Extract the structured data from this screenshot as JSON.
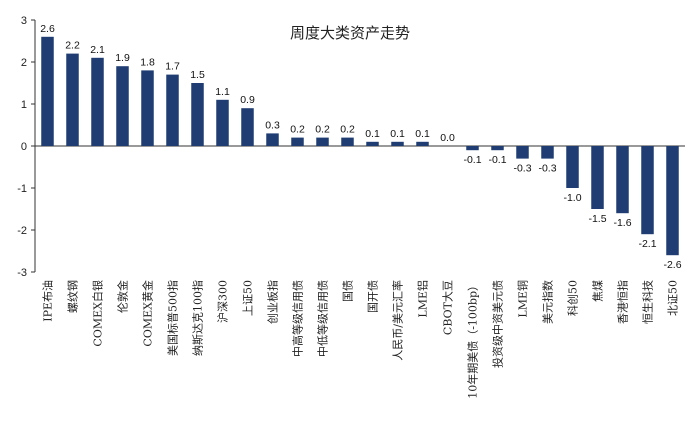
{
  "chart_data": {
    "type": "bar",
    "title": "周度大类资产走势",
    "xlabel": "",
    "ylabel": "",
    "ylim": [
      -3,
      3
    ],
    "yticks": [
      3,
      2,
      1,
      0,
      -1,
      -2,
      -3
    ],
    "bar_color": "#1f3d73",
    "grid": false,
    "legend": "none",
    "categories": [
      "IPE布油",
      "螺纹钢",
      "COMEX白银",
      "伦敦金",
      "COMEX黄金",
      "美国标普500指",
      "纳斯达克100指",
      "沪深300",
      "上证50",
      "创业板指",
      "中高等级信用债",
      "中低等级信用债",
      "国债",
      "国开债",
      "人民币/美元汇率",
      "LME铝",
      "CBOT大豆",
      "10年期美债（-100bp）",
      "投资级中资美元债",
      "LME铜",
      "美元指数",
      "科创50",
      "焦煤",
      "香港恒指",
      "恒生科技",
      "北证50"
    ],
    "values": [
      2.6,
      2.2,
      2.1,
      1.9,
      1.8,
      1.7,
      1.5,
      1.1,
      0.9,
      0.3,
      0.2,
      0.2,
      0.2,
      0.1,
      0.1,
      0.1,
      0.0,
      -0.1,
      -0.1,
      -0.3,
      -0.3,
      -1.0,
      -1.5,
      -1.6,
      -2.1,
      -2.6
    ],
    "value_labels": [
      "2.6",
      "2.2",
      "2.1",
      "1.9",
      "1.8",
      "1.7",
      "1.5",
      "1.1",
      "0.9",
      "0.3",
      "0.2",
      "0.2",
      "0.2",
      "0.1",
      "0.1",
      "0.1",
      "0.0",
      "-0.1",
      "-0.1",
      "-0.3",
      "-0.3",
      "-1.0",
      "-1.5",
      "-1.6",
      "-2.1",
      "-2.6"
    ]
  }
}
